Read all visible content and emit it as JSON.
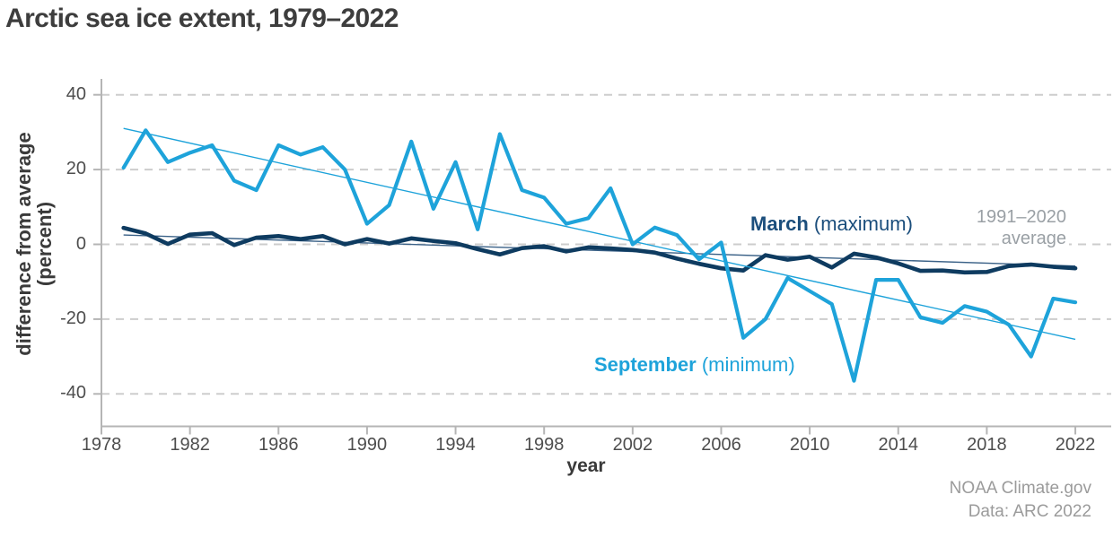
{
  "title": "Arctic sea ice extent, 1979–2022",
  "y_axis": {
    "label_line1": "difference from average",
    "label_line2": "(percent)",
    "ticks": [
      40,
      20,
      0,
      -20,
      -40
    ]
  },
  "x_axis": {
    "label": "year",
    "ticks": [
      1978,
      1982,
      1986,
      1990,
      1994,
      1998,
      2002,
      2006,
      2010,
      2014,
      2018,
      2022
    ]
  },
  "annotations": {
    "march_legend_bold": "March",
    "march_legend_rest": " (maximum)",
    "september_legend_bold": "September",
    "september_legend_rest": " (minimum)",
    "average_label_line1": "1991–2020",
    "average_label_line2": "average",
    "credit_line1": "NOAA Climate.gov",
    "credit_line2": "Data: ARC 2022"
  },
  "colors": {
    "march_line": "#0e3b60",
    "march_trend": "#3a6187",
    "september_line": "#1ea3da",
    "september_trend": "#1ea3da",
    "gridline": "#cdcdcd",
    "axis": "#b5b5b5"
  },
  "chart_data": {
    "type": "line",
    "title": "Arctic sea ice extent, 1979–2022",
    "xlabel": "year",
    "ylabel": "difference from average (percent)",
    "xlim": [
      1978,
      2023.6
    ],
    "ylim": [
      -40,
      40
    ],
    "grid": "horizontal-dashed",
    "baseline_note": "1991–2020 average",
    "legend_position": "inline-annotations",
    "x": [
      1979,
      1980,
      1981,
      1982,
      1983,
      1984,
      1985,
      1986,
      1987,
      1988,
      1989,
      1990,
      1991,
      1992,
      1993,
      1994,
      1995,
      1996,
      1997,
      1998,
      1999,
      2000,
      2001,
      2002,
      2003,
      2004,
      2005,
      2006,
      2007,
      2008,
      2009,
      2010,
      2011,
      2012,
      2013,
      2014,
      2015,
      2016,
      2017,
      2018,
      2019,
      2020,
      2021,
      2022
    ],
    "series": [
      {
        "name": "March (maximum)",
        "color": "#0e3b60",
        "values": [
          4.4,
          2.9,
          0.1,
          2.6,
          3.0,
          -0.2,
          1.8,
          2.2,
          1.4,
          2.2,
          0,
          1.4,
          0.2,
          1.6,
          0.9,
          0.3,
          -1.3,
          -2.7,
          -1.0,
          -0.5,
          -1.9,
          -0.8,
          -1.1,
          -1.5,
          -2.2,
          -3.8,
          -5.2,
          -6.4,
          -7.0,
          -2.9,
          -4.1,
          -3.3,
          -6.2,
          -2.5,
          -3.5,
          -5.1,
          -7.1,
          -7.0,
          -7.5,
          -7.4,
          -5.8,
          -5.4,
          -6.0,
          -6.4
        ]
      },
      {
        "name": "September (minimum)",
        "color": "#1ea3da",
        "values": [
          20.5,
          30.5,
          22,
          24.5,
          26.5,
          17,
          14.5,
          26.5,
          24,
          26,
          20,
          5.5,
          10.5,
          27.5,
          9.5,
          22,
          4,
          29.5,
          14.5,
          12.5,
          5.5,
          7,
          15,
          0,
          4.5,
          2.5,
          -4,
          0.5,
          -25,
          -20,
          -9,
          -12.5,
          -16,
          -36.5,
          -9.5,
          -9.5,
          -19.5,
          -21,
          -16.5,
          -18,
          -21.5,
          -30,
          -14.5,
          -15.5
        ]
      }
    ],
    "trend_lines": [
      {
        "series": "March (maximum)",
        "x1": 1979,
        "y1": 2.5,
        "x2": 2022,
        "y2": -5.8,
        "color": "#3a6187"
      },
      {
        "series": "September (minimum)",
        "x1": 1979,
        "y1": 31,
        "x2": 2022,
        "y2": -25.4,
        "color": "#1ea3da"
      }
    ]
  }
}
